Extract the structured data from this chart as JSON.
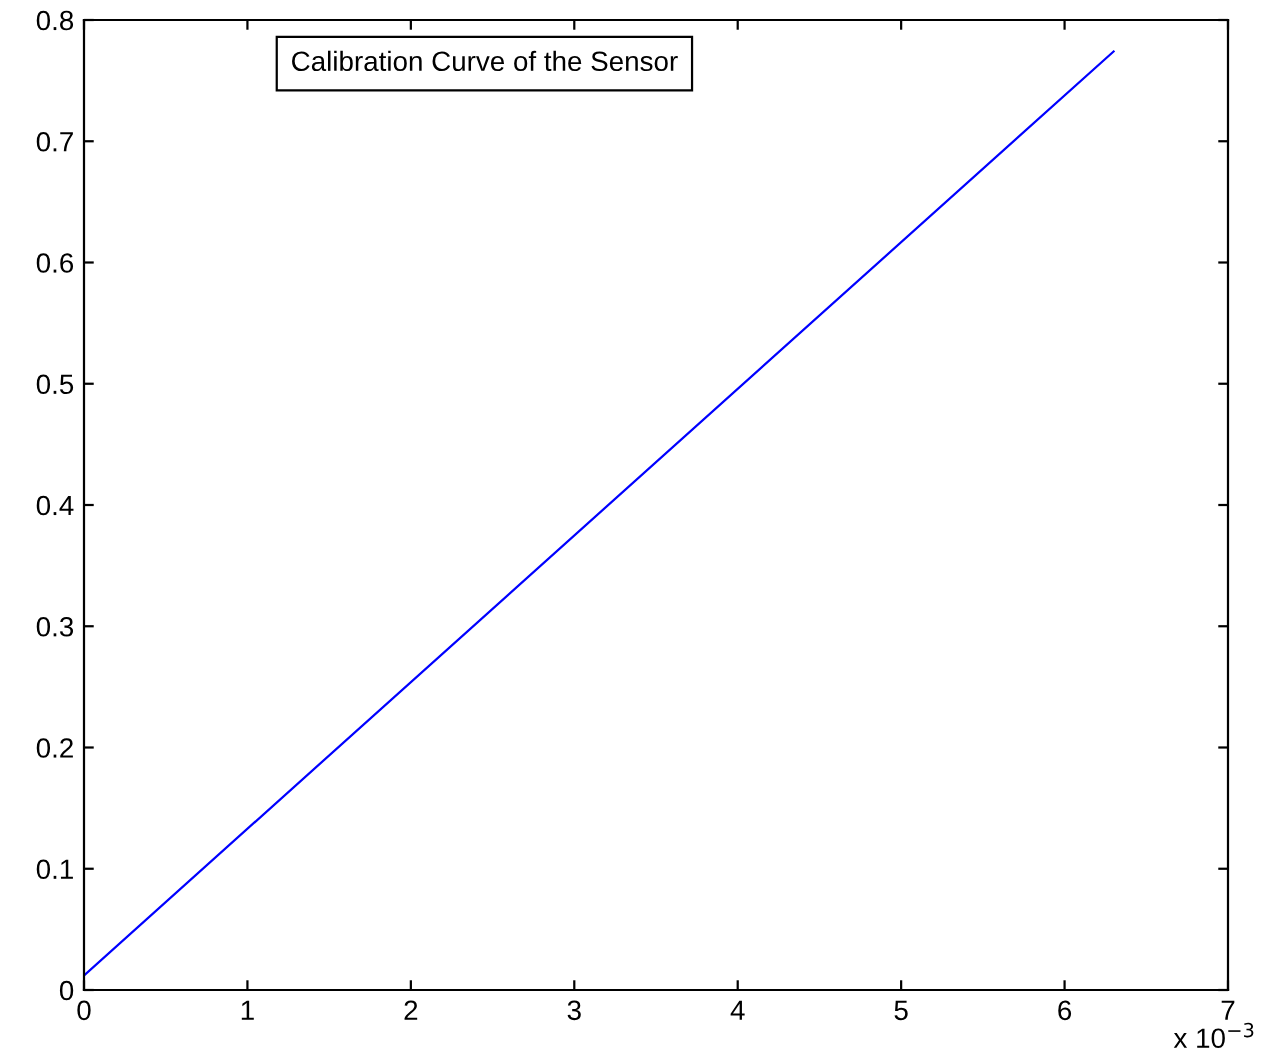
{
  "chart_data": {
    "type": "line",
    "x": [
      0,
      6.3
    ],
    "series": [
      {
        "color": "#0000ff",
        "values": [
          0.012,
          0.774
        ]
      }
    ],
    "annotations": [
      "Calibration Curve of the Sensor",
      "x 10$^{−3}$"
    ],
    "xlim": [
      0,
      7
    ],
    "xticks": [
      0,
      1,
      2,
      3,
      4,
      5,
      6,
      7
    ],
    "ylim": [
      0,
      0.8
    ],
    "yticks": [
      0,
      0.1,
      0.2,
      0.3,
      0.4,
      0.5,
      0.6,
      0.7,
      0.8
    ],
    "grid": false,
    "marker": "none",
    "line_style": "solid"
  }
}
